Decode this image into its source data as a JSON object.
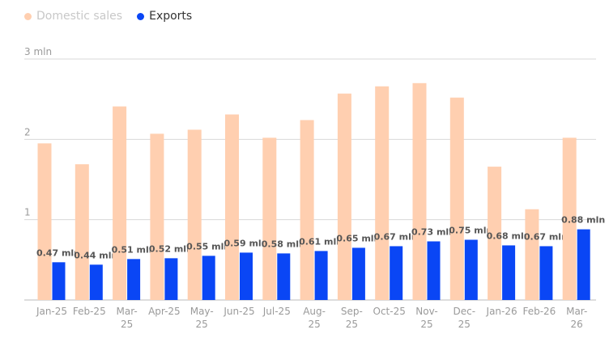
{
  "legend": {
    "domestic": "Domestic sales",
    "exports": "Exports"
  },
  "colors": {
    "domestic": "#ffcfb0",
    "exports": "#0a46f5",
    "grid": "#d8d8d8",
    "axis": "#bbbbbb"
  },
  "chart_data": {
    "type": "bar",
    "categories": [
      "Jan-25",
      "Feb-25",
      "Mar-25",
      "Apr-25",
      "May-25",
      "Jun-25",
      "Jul-25",
      "Aug-25",
      "Sep-25",
      "Oct-25",
      "Nov-25",
      "Dec-25",
      "Jan-26",
      "Feb-26",
      "Mar-26"
    ],
    "category_lines": [
      [
        "Jan-25"
      ],
      [
        "Feb-25"
      ],
      [
        "Mar-",
        "25"
      ],
      [
        "Apr-25"
      ],
      [
        "May-",
        "25"
      ],
      [
        "Jun-25"
      ],
      [
        "Jul-25"
      ],
      [
        "Aug-",
        "25"
      ],
      [
        "Sep-",
        "25"
      ],
      [
        "Oct-25"
      ],
      [
        "Nov-",
        "25"
      ],
      [
        "Dec-",
        "25"
      ],
      [
        "Jan-26"
      ],
      [
        "Feb-26"
      ],
      [
        "Mar-",
        "26"
      ]
    ],
    "series": [
      {
        "name": "Domestic sales",
        "values": [
          1.95,
          1.69,
          2.41,
          2.07,
          2.12,
          2.31,
          2.02,
          2.24,
          2.57,
          2.66,
          2.7,
          2.52,
          1.66,
          1.13,
          2.02
        ]
      },
      {
        "name": "Exports",
        "values": [
          0.47,
          0.44,
          0.51,
          0.52,
          0.55,
          0.59,
          0.58,
          0.61,
          0.65,
          0.67,
          0.73,
          0.75,
          0.68,
          0.67,
          0.88
        ],
        "labels": [
          "0.47 mln",
          "0.44 mln",
          "0.51 mln",
          "0.52 mln",
          "0.55 mln",
          "0.59 mln",
          "0.58 mln",
          "0.61 mln",
          "0.65 mln",
          "0.67 mln",
          "0.73 mln",
          "0.75 mln",
          "0.68 mln",
          "0.67 mln",
          "0.88 mln"
        ]
      }
    ],
    "y_ticks": [
      {
        "value": 1,
        "label": "1"
      },
      {
        "value": 2,
        "label": "2"
      },
      {
        "value": 3,
        "label": "3 mln"
      }
    ],
    "ylim": [
      0,
      3
    ],
    "grid": true,
    "legend_position": "top-left"
  }
}
